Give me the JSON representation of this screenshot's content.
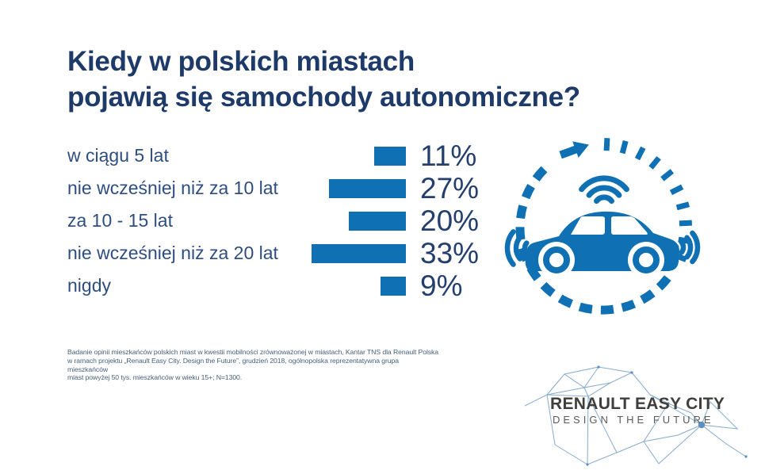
{
  "page": {
    "background": "#FFFFFF"
  },
  "title": {
    "line1": "Kiedy w polskich miastach",
    "line2": "pojawią się samochody autonomiczne?",
    "color": "#1E3A68"
  },
  "chart_data": {
    "type": "bar",
    "orientation": "horizontal-right-aligned",
    "title": "Kiedy w polskich miastach pojawią się samochody autonomiczne?",
    "categories": [
      "w ciągu 5 lat",
      "nie wcześniej niż za 10 lat",
      "za 10 - 15 lat",
      "nie wcześniej niż za 20 lat",
      "nigdy"
    ],
    "values": [
      11,
      27,
      20,
      33,
      9
    ],
    "value_labels": [
      "11%",
      "27%",
      "20%",
      "33%",
      "9%"
    ],
    "unit": "%",
    "xlim": [
      0,
      35
    ],
    "grid": false,
    "legend": false,
    "bar_color": "#0F71B4",
    "category_label_color": "#2F4E80",
    "value_label_color": "#243F6E"
  },
  "illustration": {
    "name": "autonomous-car-in-dashed-circle",
    "elements": [
      "dashed-circle",
      "clockwise-arrow",
      "tick-marks",
      "car-silhouette",
      "wifi-signal",
      "side-sensor-waves"
    ],
    "color": "#0F71B4"
  },
  "footnote": {
    "line1": "Badanie opinii mieszkańców polskich miast w kwestii mobilności zrównoważonej w miastach, Kantar TNS dla Renault Polska",
    "line2": "w ramach projektu „Renault Easy City. Design the Future”, grudzień 2018, ogólnopolska reprezentatywna grupa mieszkańców",
    "line3": "miast powyżej 50 tys. mieszkańców w wieku 15+; N=1300."
  },
  "logo": {
    "primary": "RENAULT EASY CITY",
    "secondary": "DESIGN THE FUTURE",
    "primary_color": "#3E3E3D",
    "secondary_color": "#5B5B5A",
    "network_color": "#7FA6CC"
  }
}
